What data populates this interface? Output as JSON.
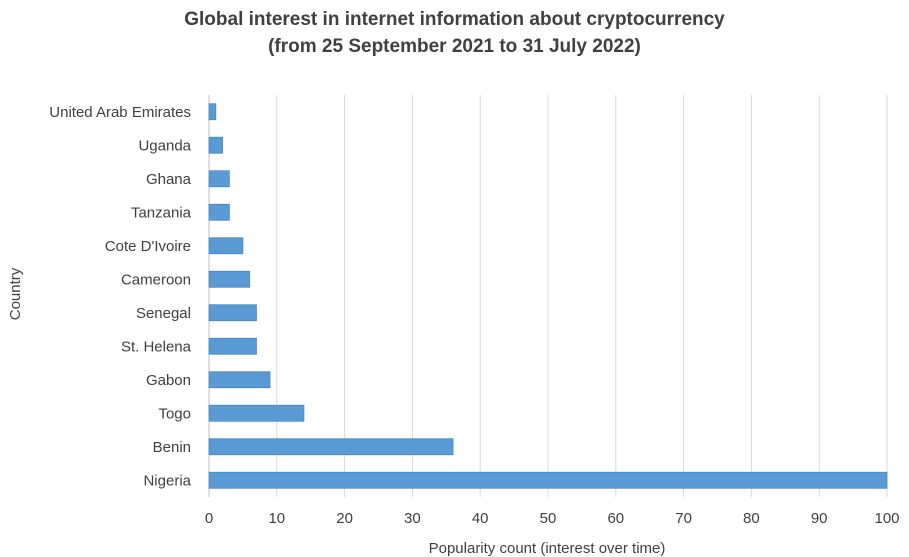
{
  "chart_data": {
    "type": "bar",
    "orientation": "horizontal",
    "title": "Global interest in internet information about cryptocurrency",
    "subtitle": "(from 25 September 2021 to 31 July 2022)",
    "xlabel": "Popularity count (interest over time)",
    "ylabel": "Country",
    "categories": [
      "United Arab Emirates",
      "Uganda",
      "Ghana",
      "Tanzania",
      "Cote D'Ivoire",
      "Cameroon",
      "Senegal",
      "St. Helena",
      "Gabon",
      "Togo",
      "Benin",
      "Nigeria"
    ],
    "values": [
      1,
      2,
      3,
      3,
      5,
      6,
      7,
      7,
      9,
      14,
      36,
      100
    ],
    "xlim": [
      0,
      100
    ],
    "xticks": [
      0,
      10,
      20,
      30,
      40,
      50,
      60,
      70,
      80,
      90,
      100
    ],
    "grid": "vertical",
    "legend": "none",
    "colors": {
      "bar": "#5b9bd5",
      "bar_edge": "#4a86c0",
      "grid": "#d9d9d9",
      "text": "#404040"
    }
  }
}
